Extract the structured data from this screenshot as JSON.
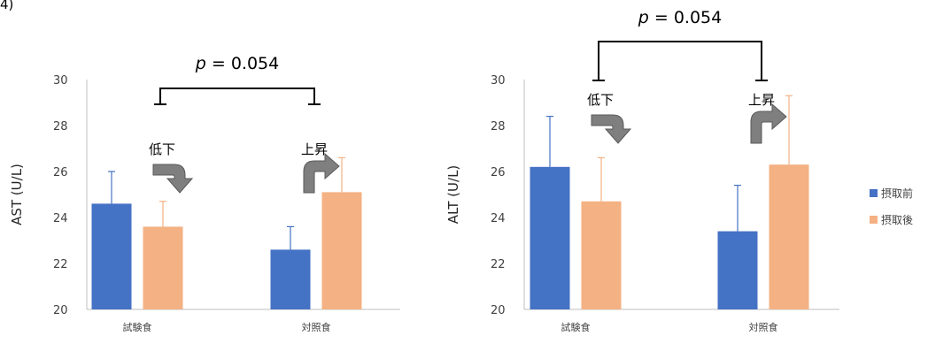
{
  "corner_label": "4)",
  "chart_data": [
    {
      "type": "bar",
      "ylabel": "AST (U/L)",
      "ylim": [
        20,
        30
      ],
      "yticks": [
        20,
        22,
        24,
        26,
        28,
        30
      ],
      "categories": [
        "試験食",
        "対照食"
      ],
      "series": [
        {
          "name": "摂取前",
          "color": "#4472C4",
          "values": [
            24.6,
            22.6
          ],
          "error_plus": [
            1.4,
            1.0
          ]
        },
        {
          "name": "摂取後",
          "color": "#F4B183",
          "values": [
            23.6,
            25.1
          ],
          "error_plus": [
            1.1,
            1.5
          ]
        }
      ],
      "significance": {
        "p_label": "p",
        "p_value": "= 0.054"
      },
      "annotations": [
        {
          "text": "低下",
          "direction": "down",
          "category": "試験食"
        },
        {
          "text": "上昇",
          "direction": "up",
          "category": "対照食"
        }
      ],
      "grid": false
    },
    {
      "type": "bar",
      "ylabel": "ALT (U/L)",
      "ylim": [
        20,
        30
      ],
      "yticks": [
        20,
        22,
        24,
        26,
        28,
        30
      ],
      "categories": [
        "試験食",
        "対照食"
      ],
      "series": [
        {
          "name": "摂取前",
          "color": "#4472C4",
          "values": [
            26.2,
            23.4
          ],
          "error_plus": [
            2.2,
            2.0
          ]
        },
        {
          "name": "摂取後",
          "color": "#F4B183",
          "values": [
            24.7,
            26.3
          ],
          "error_plus": [
            1.9,
            3.0
          ]
        }
      ],
      "significance": {
        "p_label": "p",
        "p_value": "= 0.054"
      },
      "annotations": [
        {
          "text": "低下",
          "direction": "down",
          "category": "試験食"
        },
        {
          "text": "上昇",
          "direction": "up",
          "category": "対照食"
        }
      ],
      "grid": false
    }
  ],
  "legend": {
    "placement": "right",
    "items": [
      {
        "label": "摂取前",
        "color": "#4472C4"
      },
      {
        "label": "摂取後",
        "color": "#F4B183"
      }
    ]
  }
}
